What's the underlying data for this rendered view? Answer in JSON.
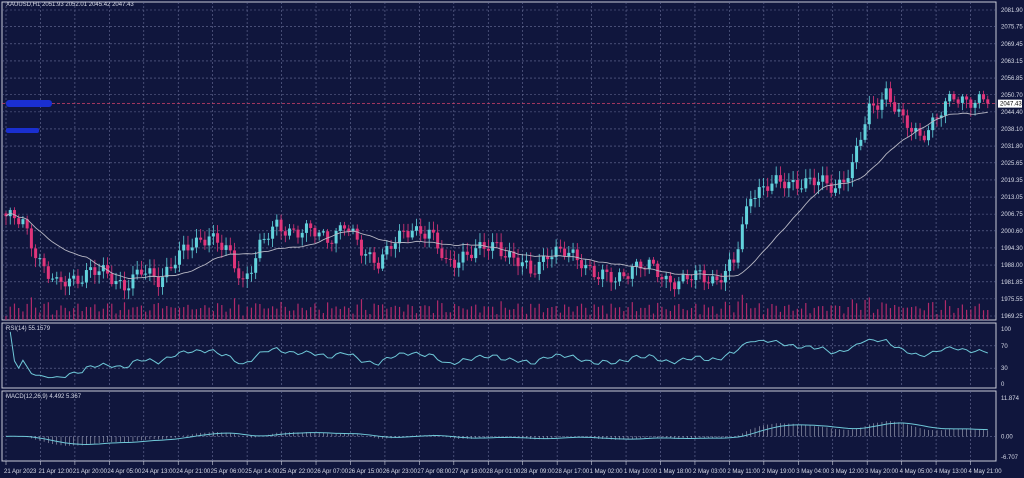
{
  "header": {
    "symbol": "XAUUSD,H1",
    "ohlc": "2051.93 2052.01 2045.42 2047.43"
  },
  "rsi_panel": {
    "label": "RSI(14) 55.1579"
  },
  "macd_panel": {
    "label": "MACD(12,26,9) 4.492 5.367"
  },
  "colors": {
    "background": "#10163d",
    "grid": "#6a7099",
    "bull": "#62d2dc",
    "bear": "#e0357a",
    "ma": "#b8b8c4",
    "indicator": "#6fc8d8",
    "current_price_line": "#d0406a"
  },
  "chart_data": {
    "type": "candlestick",
    "price_axis": {
      "ticks": [
        "2081.90",
        "2075.75",
        "2069.45",
        "2063.15",
        "2056.85",
        "2050.70",
        "2044.40",
        "2038.10",
        "2031.80",
        "2025.65",
        "2019.35",
        "2013.05",
        "2006.75",
        "2000.60",
        "1994.30",
        "1988.00",
        "1981.85",
        "1975.55",
        "1969.25"
      ],
      "range": [
        1969.25,
        2081.9
      ]
    },
    "current_price": "2047.43",
    "approx_closes": [
      2006,
      2003,
      1990,
      1980,
      1983,
      1986,
      1984,
      1981,
      1985,
      1983,
      1990,
      1995,
      2000,
      1993,
      1982,
      1995,
      2002,
      2001,
      2000,
      1998,
      2003,
      1993,
      1990,
      1996,
      2002,
      2000,
      1988,
      1992,
      1993,
      1996,
      1990,
      1985,
      1993,
      1992,
      1990,
      1984,
      1982,
      1988,
      1987,
      1983,
      1982,
      1984,
      1983,
      1988,
      2015,
      2017,
      2018,
      2019,
      2018,
      2017,
      2024,
      2045,
      2052,
      2040,
      2036,
      2042,
      2050,
      2049,
      2047.43
    ],
    "rsi_axis": {
      "ticks": [
        "100",
        "70",
        "30",
        "0"
      ]
    },
    "macd_axis": {
      "ticks": [
        "11.874",
        "0.00",
        "-6.707"
      ]
    },
    "time_axis": [
      "21 Apr 2023",
      "21 Apr 12:00",
      "21 Apr 20:00",
      "24 Apr 05:00",
      "24 Apr 13:00",
      "24 Apr 21:00",
      "25 Apr 06:00",
      "25 Apr 14:00",
      "25 Apr 22:00",
      "26 Apr 07:00",
      "26 Apr 15:00",
      "26 Apr 23:00",
      "27 Apr 08:00",
      "27 Apr 16:00",
      "28 Apr 01:00",
      "28 Apr 09:00",
      "28 Apr 17:00",
      "1 May 02:00",
      "1 May 10:00",
      "1 May 18:00",
      "2 May 03:00",
      "2 May 11:00",
      "2 May 19:00",
      "3 May 04:00",
      "3 May 12:00",
      "3 May 20:00",
      "4 May 05:00",
      "4 May 13:00",
      "4 May 21:00"
    ],
    "grid": true
  }
}
